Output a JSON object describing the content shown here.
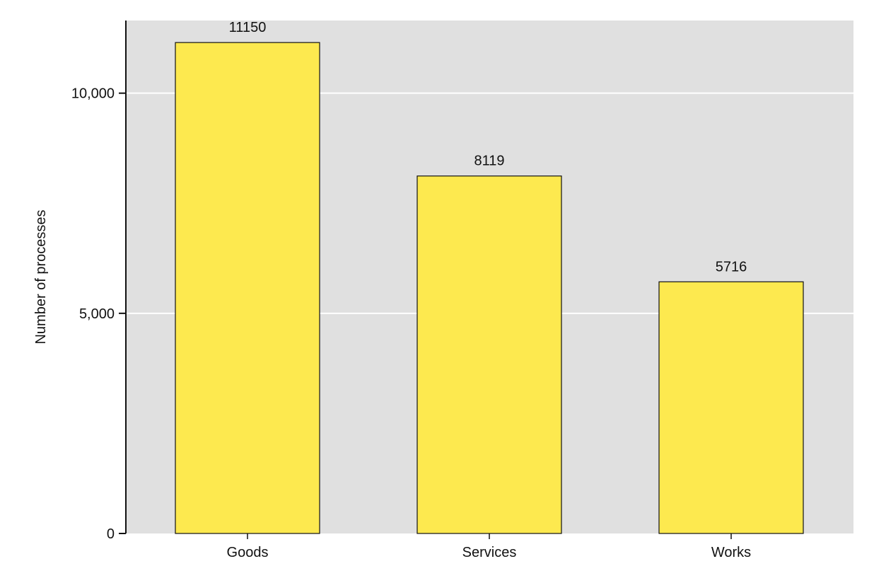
{
  "chart_data": {
    "type": "bar",
    "title": "",
    "xlabel": "",
    "ylabel": "Number of processes",
    "categories": [
      "Goods",
      "Services",
      "Works"
    ],
    "values": [
      11150,
      8119,
      5716
    ],
    "data_labels": [
      "11150",
      "8119",
      "5716"
    ],
    "ylim": [
      0,
      11650
    ],
    "y_ticks": [
      0,
      5000,
      10000
    ],
    "y_tick_labels": [
      "0",
      "5,000",
      "10,000"
    ],
    "grid": true,
    "legend": "none"
  },
  "colors": {
    "bar_fill": "#fde94f",
    "bar_stroke": "#111111",
    "panel_background": "#e0e0e0",
    "gridline": "#ffffff",
    "axis": "#111111"
  }
}
